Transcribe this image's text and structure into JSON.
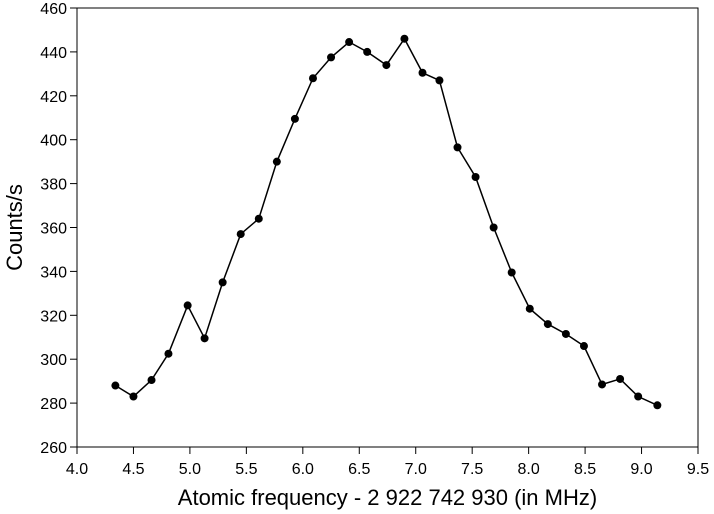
{
  "chart_data": {
    "type": "line",
    "title": "",
    "xlabel": "Atomic frequency - 2 922 742 930 (in MHz)",
    "ylabel": "Counts/s",
    "xlim": [
      4.0,
      9.5
    ],
    "ylim": [
      260,
      460
    ],
    "x_ticks": [
      4.0,
      4.5,
      5.0,
      5.5,
      6.0,
      6.5,
      7.0,
      7.5,
      8.0,
      8.5,
      9.0,
      9.5
    ],
    "x_tick_labels": [
      "4.0",
      "4.5",
      "5.0",
      "5.5",
      "6.0",
      "6.5",
      "7.0",
      "7.5",
      "8.0",
      "8.5",
      "9.0",
      "9.5"
    ],
    "y_ticks": [
      260,
      280,
      300,
      320,
      340,
      360,
      380,
      400,
      420,
      440,
      460
    ],
    "y_tick_labels": [
      "260",
      "280",
      "300",
      "320",
      "340",
      "360",
      "380",
      "400",
      "420",
      "440",
      "460"
    ],
    "grid": false,
    "legend": "none",
    "series": [
      {
        "color": "#000000",
        "marker": "circle",
        "x": [
          4.34,
          4.5,
          4.66,
          4.81,
          4.98,
          5.13,
          5.29,
          5.45,
          5.61,
          5.77,
          5.93,
          6.09,
          6.25,
          6.41,
          6.57,
          6.74,
          6.9,
          7.06,
          7.21,
          7.37,
          7.53,
          7.69,
          7.85,
          8.01,
          8.17,
          8.33,
          8.49,
          8.65,
          8.81,
          8.97,
          9.14
        ],
        "y": [
          288,
          283,
          290.5,
          302.5,
          324.5,
          309.5,
          335,
          357,
          364,
          390,
          409.5,
          428,
          437.5,
          444.5,
          440,
          434,
          446,
          430.5,
          427,
          396.5,
          383,
          360,
          339.5,
          323,
          316,
          311.5,
          306,
          288.5,
          291,
          283,
          279
        ]
      }
    ]
  }
}
